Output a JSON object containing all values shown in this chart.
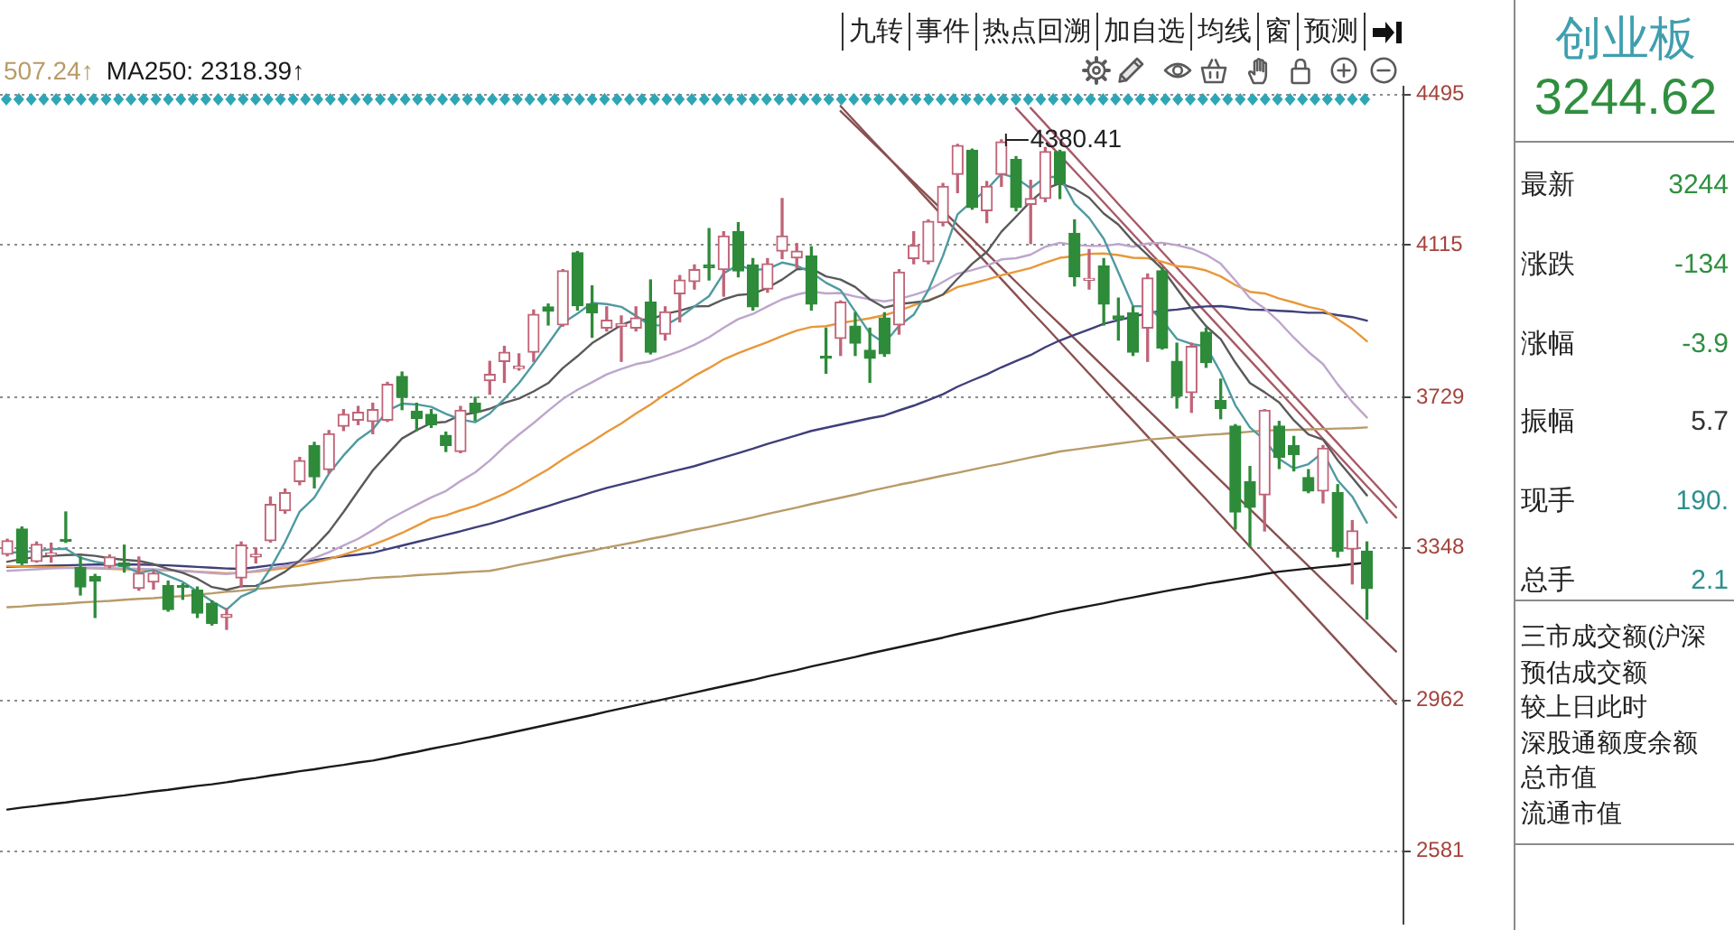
{
  "chart_data": [
    {
      "type": "candlestick",
      "categories": [
        null,
        null,
        null,
        null,
        null,
        null,
        null,
        null,
        null,
        null,
        null,
        null,
        null,
        null,
        null,
        null,
        null,
        null,
        null,
        null,
        null,
        null,
        null,
        null,
        null,
        null,
        null,
        null,
        null,
        null,
        null,
        null,
        null,
        null,
        null,
        null,
        null,
        null,
        null,
        null,
        null,
        null,
        null,
        null,
        null,
        null,
        null,
        null,
        null,
        null,
        null,
        null,
        null,
        null,
        null,
        null,
        null,
        null,
        null,
        null,
        null,
        null,
        null,
        null,
        null,
        null,
        null,
        null,
        null,
        null,
        null,
        null,
        null,
        null,
        null,
        null,
        null,
        null,
        null,
        null,
        null,
        null,
        null,
        null,
        null,
        null,
        null,
        null,
        null,
        null,
        null,
        null,
        null,
        null,
        null,
        null
      ],
      "ohlc": [
        [
          3332,
          3370,
          3328,
          3366
        ],
        [
          3396,
          3401,
          3306,
          3310
        ],
        [
          3314,
          3363,
          3312,
          3357
        ],
        [
          3330,
          3360,
          3312,
          3332
        ],
        [
          3368,
          3439,
          3362,
          3365
        ],
        [
          3299,
          3325,
          3229,
          3249
        ],
        [
          3276,
          3281,
          3172,
          3264
        ],
        [
          3302,
          3330,
          3298,
          3325
        ],
        [
          3310,
          3355,
          3287,
          3302
        ],
        [
          3246,
          3325,
          3241,
          3284
        ],
        [
          3262,
          3290,
          3244,
          3284
        ],
        [
          3253,
          3264,
          3188,
          3192
        ],
        [
          3250,
          3257,
          3218,
          3248
        ],
        [
          3241,
          3249,
          3172,
          3183
        ],
        [
          3208,
          3214,
          3153,
          3157
        ],
        [
          3172,
          3195,
          3142,
          3180
        ],
        [
          3272,
          3363,
          3249,
          3355
        ],
        [
          3325,
          3348,
          3310,
          3332
        ],
        [
          3366,
          3477,
          3363,
          3458
        ],
        [
          3442,
          3497,
          3436,
          3488
        ],
        [
          3516,
          3577,
          3508,
          3569
        ],
        [
          3607,
          3615,
          3500,
          3528
        ],
        [
          3546,
          3645,
          3538,
          3637
        ],
        [
          3656,
          3698,
          3645,
          3686
        ],
        [
          3671,
          3706,
          3660,
          3691
        ],
        [
          3668,
          3714,
          3637,
          3698
        ],
        [
          3671,
          3767,
          3668,
          3762
        ],
        [
          3782,
          3793,
          3698,
          3729
        ],
        [
          3694,
          3714,
          3645,
          3675
        ],
        [
          3686,
          3698,
          3653,
          3660
        ],
        [
          3633,
          3641,
          3592,
          3607
        ],
        [
          3592,
          3706,
          3589,
          3696
        ],
        [
          3714,
          3729,
          3671,
          3691
        ],
        [
          3771,
          3820,
          3737,
          3787
        ],
        [
          3820,
          3858,
          3767,
          3843
        ],
        [
          3802,
          3839,
          3798,
          3808
        ],
        [
          3843,
          3950,
          3820,
          3939
        ],
        [
          3958,
          3965,
          3912,
          3947
        ],
        [
          3912,
          4052,
          3909,
          4049
        ],
        [
          4095,
          4098,
          3950,
          3961
        ],
        [
          3965,
          4011,
          3881,
          3943
        ],
        [
          3904,
          3958,
          3897,
          3924
        ],
        [
          3909,
          3935,
          3820,
          3915
        ],
        [
          3904,
          3958,
          3897,
          3930
        ],
        [
          3970,
          4026,
          3839,
          3843
        ],
        [
          3889,
          3958,
          3874,
          3945
        ],
        [
          3991,
          4037,
          3920,
          4026
        ],
        [
          4022,
          4064,
          4003,
          4052
        ],
        [
          4064,
          4156,
          4026,
          4057
        ],
        [
          4052,
          4148,
          3985,
          4137
        ],
        [
          4148,
          4171,
          4034,
          4049
        ],
        [
          4064,
          4080,
          3950,
          3958
        ],
        [
          4003,
          4080,
          3995,
          4067
        ],
        [
          4099,
          4232,
          4080,
          4137
        ],
        [
          4082,
          4118,
          4057,
          4099
        ],
        [
          4087,
          4110,
          3950,
          3965
        ],
        [
          3832,
          3904,
          3790,
          3828
        ],
        [
          3878,
          3973,
          3835,
          3970
        ],
        [
          3909,
          3943,
          3835,
          3866
        ],
        [
          3848,
          3904,
          3767,
          3828
        ],
        [
          3930,
          3943,
          3833,
          3839
        ],
        [
          3912,
          4052,
          3889,
          4046
        ],
        [
          4080,
          4148,
          4067,
          4113
        ],
        [
          4072,
          4178,
          4067,
          4174
        ],
        [
          4171,
          4270,
          4163,
          4263
        ],
        [
          4293,
          4369,
          4247,
          4366
        ],
        [
          4354,
          4357,
          4205,
          4209
        ],
        [
          4201,
          4275,
          4171,
          4263
        ],
        [
          4293,
          4380.41,
          4263,
          4375
        ],
        [
          4331,
          4338,
          4201,
          4209
        ],
        [
          4217,
          4278,
          4118,
          4232
        ],
        [
          4232,
          4361,
          4224,
          4351
        ],
        [
          4351,
          4354,
          4232,
          4270
        ],
        [
          4144,
          4178,
          4011,
          4034
        ],
        [
          4025,
          4103,
          4003,
          4030
        ],
        [
          4061,
          4080,
          3912,
          3965
        ],
        [
          3935,
          3980,
          3874,
          3927
        ],
        [
          3943,
          3958,
          3835,
          3843
        ],
        [
          3904,
          4041,
          3820,
          4031
        ],
        [
          4049,
          4057,
          3851,
          3854
        ],
        [
          3820,
          3866,
          3702,
          3732
        ],
        [
          3741,
          3866,
          3691,
          3858
        ],
        [
          3894,
          3904,
          3805,
          3817
        ],
        [
          3721,
          3775,
          3675,
          3701
        ],
        [
          3656,
          3660,
          3396,
          3439
        ],
        [
          3515,
          3554,
          3351,
          3451
        ],
        [
          3482,
          3698,
          3391,
          3696
        ],
        [
          3656,
          3668,
          3549,
          3577
        ],
        [
          3607,
          3630,
          3543,
          3584
        ],
        [
          3526,
          3546,
          3488,
          3492
        ],
        [
          3492,
          3607,
          3462,
          3600
        ],
        [
          3488,
          3508,
          3325,
          3340
        ],
        [
          3345,
          3417,
          3257,
          3391
        ],
        [
          3340,
          3363,
          3168,
          3245
        ],
        null,
        null
      ],
      "value_labels": [
        null,
        null,
        null,
        null,
        null,
        null,
        null,
        null,
        null,
        null,
        null,
        null,
        null,
        null,
        null,
        null,
        null,
        null,
        null,
        null,
        null,
        null,
        null,
        null,
        null,
        null,
        null,
        null,
        null,
        null,
        null,
        null,
        null,
        null,
        null,
        null,
        null,
        null,
        null,
        null,
        null,
        null,
        null,
        null,
        null,
        null,
        null,
        null,
        null,
        null,
        null,
        null,
        null,
        null,
        null,
        null,
        null,
        null,
        null,
        null,
        null,
        null,
        null,
        null,
        null,
        null,
        null,
        null,
        "4380.41",
        null,
        null,
        null,
        null,
        null,
        null,
        null,
        null,
        null,
        null,
        null,
        null,
        null,
        null,
        null,
        null,
        null,
        null,
        null,
        null,
        null,
        null,
        null,
        null,
        null,
        null,
        null
      ],
      "colors": [
        "#c06478",
        "#2e8b3a",
        "#c06478",
        "#c06478",
        "#2e8b3a",
        "#2e8b3a",
        "#2e8b3a",
        "#c06478",
        "#2e8b3a",
        "#c06478",
        "#c06478",
        "#2e8b3a",
        "#2e8b3a",
        "#2e8b3a",
        "#2e8b3a",
        "#c06478",
        "#c06478",
        "#c06478",
        "#c06478",
        "#c06478",
        "#c06478",
        "#2e8b3a",
        "#c06478",
        "#c06478",
        "#c06478",
        "#c06478",
        "#c06478",
        "#2e8b3a",
        "#2e8b3a",
        "#2e8b3a",
        "#2e8b3a",
        "#c06478",
        "#2e8b3a",
        "#c06478",
        "#c06478",
        "#c06478",
        "#c06478",
        "#2e8b3a",
        "#c06478",
        "#2e8b3a",
        "#2e8b3a",
        "#c06478",
        "#c06478",
        "#c06478",
        "#2e8b3a",
        "#c06478",
        "#c06478",
        "#c06478",
        "#2e8b3a",
        "#c06478",
        "#2e8b3a",
        "#2e8b3a",
        "#c06478",
        "#c06478",
        "#c06478",
        "#2e8b3a",
        "#2e8b3a",
        "#c06478",
        "#2e8b3a",
        "#2e8b3a",
        "#2e8b3a",
        "#c06478",
        "#c06478",
        "#c06478",
        "#c06478",
        "#c06478",
        "#2e8b3a",
        "#c06478",
        "#c06478",
        "#2e8b3a",
        "#c06478",
        "#c06478",
        "#2e8b3a",
        "#2e8b3a",
        "#c06478",
        "#2e8b3a",
        "#2e8b3a",
        "#2e8b3a",
        "#c06478",
        "#2e8b3a",
        "#2e8b3a",
        "#c06478",
        "#2e8b3a",
        "#2e8b3a",
        "#2e8b3a",
        "#2e8b3a",
        "#c06478",
        "#2e8b3a",
        "#2e8b3a",
        "#2e8b3a",
        "#c06478",
        "#2e8b3a",
        "#c06478",
        "#2e8b3a",
        null,
        null
      ],
      "series": [
        {
          "type": "line",
          "color": "#4f9aa0",
          "values": [
            3335,
            3338,
            3340,
            3345,
            3346,
            3323,
            3313,
            3307,
            3301,
            3285,
            3292,
            3277,
            3262,
            3238,
            3213,
            3192,
            3225,
            3241,
            3296,
            3363,
            3440,
            3475,
            3536,
            3582,
            3622,
            3648,
            3695,
            3713,
            3711,
            3705,
            3687,
            3673,
            3666,
            3688,
            3725,
            3765,
            3814,
            3865,
            3917,
            3941,
            3968,
            3965,
            3958,
            3935,
            3911,
            3911,
            3932,
            3959,
            3985,
            4043,
            4064,
            4051,
            4054,
            4070,
            4062,
            4045,
            4019,
            4000,
            3946,
            3891,
            3866,
            3910,
            3938,
            4000,
            4087,
            4192,
            4225,
            4255,
            4295,
            4284,
            4258,
            4286,
            4287,
            4219,
            4183,
            4130,
            4045,
            3960,
            3959,
            3924,
            3877,
            3864,
            3858,
            3792,
            3709,
            3653,
            3621,
            3573,
            3549,
            3560,
            3590,
            3519,
            3478,
            3412,
            null,
            null
          ]
        },
        {
          "type": "line",
          "color": "#5a5a5a",
          "values": [
            3313,
            3320,
            3325,
            3328,
            3330,
            3331,
            3328,
            3322,
            3318,
            3315,
            3307,
            3295,
            3285,
            3270,
            3249,
            3242,
            3251,
            3252,
            3267,
            3288,
            3316,
            3350,
            3389,
            3439,
            3492,
            3544,
            3585,
            3625,
            3646,
            3664,
            3667,
            3684,
            3690,
            3700,
            3715,
            3726,
            3744,
            3765,
            3803,
            3833,
            3866,
            3889,
            3912,
            3926,
            3926,
            3940,
            3948,
            3959,
            3960,
            3977,
            3988,
            3991,
            4006,
            4027,
            4053,
            4055,
            4035,
            4027,
            4008,
            3977,
            3956,
            3965,
            3969,
            3973,
            3989,
            4029,
            4067,
            4097,
            4148,
            4186,
            4225,
            4256,
            4271,
            4257,
            4234,
            4194,
            4166,
            4124,
            4089,
            4054,
            4004,
            3954,
            3909,
            3876,
            3817,
            3765,
            3742,
            3716,
            3671,
            3635,
            3622,
            3570,
            3526,
            3481,
            null,
            null
          ]
        },
        {
          "type": "line",
          "color": "#bda6cc",
          "values": [
            3290,
            3292,
            3294,
            3296,
            3297,
            3298,
            3298,
            3297,
            3296,
            3295,
            3294,
            3292,
            3290,
            3287,
            3284,
            3282,
            3285,
            3290,
            3296,
            3302,
            3312,
            3323,
            3337,
            3354,
            3371,
            3393,
            3418,
            3438,
            3457,
            3476,
            3492,
            3517,
            3539,
            3569,
            3604,
            3635,
            3664,
            3695,
            3725,
            3748,
            3767,
            3787,
            3801,
            3813,
            3820,
            3833,
            3846,
            3862,
            3881,
            3905,
            3927,
            3940,
            3959,
            3977,
            3989,
            3997,
            3992,
            3993,
            3984,
            3977,
            3972,
            3978,
            3988,
            4000,
            4021,
            4042,
            4051,
            4062,
            4078,
            4081,
            4090,
            4110,
            4120,
            4115,
            4112,
            4112,
            4117,
            4110,
            4118,
            4120,
            4114,
            4105,
            4090,
            4067,
            4025,
            3980,
            3954,
            3920,
            3880,
            3844,
            3813,
            3762,
            3717,
            3678,
            null,
            null
          ]
        },
        {
          "type": "line",
          "color": "#e8983a",
          "values": [
            3302,
            3301,
            3300,
            3299,
            3298,
            3297,
            3296,
            3295,
            3294,
            3293,
            3292,
            3291,
            3290,
            3288,
            3286,
            3284,
            3285,
            3288,
            3292,
            3297,
            3303,
            3311,
            3320,
            3331,
            3343,
            3356,
            3370,
            3386,
            3404,
            3422,
            3430,
            3443,
            3454,
            3469,
            3485,
            3504,
            3526,
            3547,
            3572,
            3595,
            3617,
            3641,
            3663,
            3688,
            3711,
            3737,
            3759,
            3783,
            3803,
            3825,
            3841,
            3855,
            3869,
            3884,
            3898,
            3907,
            3909,
            3917,
            3923,
            3929,
            3937,
            3948,
            3962,
            3975,
            3989,
            4008,
            4017,
            4027,
            4038,
            4047,
            4056,
            4070,
            4082,
            4086,
            4092,
            4093,
            4089,
            4082,
            4081,
            4072,
            4061,
            4058,
            4050,
            4035,
            4013,
            3996,
            3992,
            3979,
            3969,
            3958,
            3950,
            3927,
            3902,
            3871,
            null,
            null
          ]
        },
        {
          "type": "line",
          "color": "#3f3f7a",
          "values": [
            3300,
            3301,
            3302,
            3303,
            3304,
            3305,
            3306,
            3306,
            3306,
            3306,
            3305,
            3304,
            3302,
            3300,
            3298,
            3296,
            3295,
            3299,
            3304,
            3308,
            3313,
            3317,
            3322,
            3327,
            3331,
            3336,
            3345,
            3354,
            3363,
            3372,
            3381,
            3390,
            3400,
            3409,
            3420,
            3432,
            3443,
            3454,
            3466,
            3477,
            3489,
            3500,
            3509,
            3518,
            3528,
            3537,
            3546,
            3555,
            3566,
            3577,
            3588,
            3599,
            3611,
            3622,
            3633,
            3644,
            3652,
            3660,
            3668,
            3676,
            3683,
            3696,
            3708,
            3722,
            3737,
            3756,
            3772,
            3787,
            3805,
            3821,
            3836,
            3856,
            3873,
            3887,
            3901,
            3915,
            3924,
            3933,
            3942,
            3948,
            3951,
            3956,
            3959,
            3960,
            3956,
            3951,
            3950,
            3948,
            3946,
            3943,
            3943,
            3937,
            3932,
            3923,
            null,
            null
          ]
        },
        {
          "type": "line",
          "name": "507.24↑",
          "color": "#b89b68",
          "values": [
            3198,
            3200,
            3203,
            3205,
            3207,
            3210,
            3212,
            3214,
            3217,
            3219,
            3221,
            3224,
            3226,
            3230,
            3233,
            3237,
            3240,
            3244,
            3247,
            3251,
            3254,
            3258,
            3261,
            3265,
            3268,
            3272,
            3274,
            3276,
            3279,
            3281,
            3283,
            3286,
            3288,
            3290,
            3297,
            3305,
            3312,
            3319,
            3327,
            3334,
            3341,
            3349,
            3356,
            3363,
            3371,
            3378,
            3386,
            3394,
            3401,
            3409,
            3417,
            3425,
            3434,
            3442,
            3450,
            3459,
            3467,
            3475,
            3483,
            3492,
            3500,
            3508,
            3515,
            3523,
            3531,
            3538,
            3546,
            3554,
            3561,
            3569,
            3577,
            3584,
            3592,
            3597,
            3602,
            3607,
            3612,
            3617,
            3622,
            3625,
            3628,
            3631,
            3634,
            3636,
            3639,
            3642,
            3645,
            3646,
            3647,
            3648,
            3649,
            3650,
            3651,
            3653,
            null,
            null
          ]
        },
        {
          "type": "line",
          "name": "MA250: 2318.39↑",
          "color": "#1a1a1a",
          "values": [
            2686,
            2691,
            2695,
            2700,
            2704,
            2709,
            2713,
            2718,
            2722,
            2727,
            2732,
            2736,
            2741,
            2746,
            2750,
            2755,
            2761,
            2766,
            2772,
            2777,
            2783,
            2788,
            2794,
            2799,
            2805,
            2810,
            2817,
            2825,
            2832,
            2840,
            2847,
            2854,
            2862,
            2869,
            2877,
            2885,
            2893,
            2901,
            2909,
            2917,
            2925,
            2934,
            2942,
            2950,
            2958,
            2966,
            2974,
            2982,
            2990,
            2998,
            3006,
            3014,
            3023,
            3031,
            3039,
            3048,
            3056,
            3064,
            3072,
            3081,
            3089,
            3097,
            3105,
            3113,
            3121,
            3130,
            3138,
            3146,
            3154,
            3162,
            3170,
            3179,
            3187,
            3194,
            3201,
            3208,
            3216,
            3223,
            3230,
            3237,
            3244,
            3250,
            3257,
            3263,
            3269,
            3275,
            3282,
            3288,
            3292,
            3296,
            3300,
            3303,
            3307,
            3311,
            null,
            null
          ]
        },
        {
          "type": "line",
          "color": "#8a5050",
          "values": [
            null,
            null,
            null,
            null,
            null,
            null,
            null,
            null,
            null,
            null,
            null,
            null,
            null,
            null,
            null,
            null,
            null,
            null,
            null,
            null,
            null,
            null,
            null,
            null,
            null,
            null,
            null,
            null,
            null,
            null,
            null,
            null,
            null,
            null,
            null,
            null,
            null,
            null,
            null,
            null,
            null,
            null,
            null,
            null,
            null,
            null,
            null,
            null,
            null,
            null,
            null,
            null,
            null,
            null,
            null,
            null,
            null,
            4466,
            4426,
            4386,
            4347,
            4307,
            4267,
            4227,
            4187,
            4147,
            4108,
            4068,
            4028,
            3988,
            3948,
            3909,
            3869,
            3829,
            3789,
            3749,
            3709,
            3670,
            3630,
            3590,
            3550,
            3510,
            3471,
            3431,
            3391,
            3351,
            3311,
            3271,
            3232,
            3192,
            3152,
            3112,
            3072,
            3032,
            2993,
            2953
          ]
        },
        {
          "type": "line",
          "color": "#8a5050",
          "values": [
            null,
            null,
            null,
            null,
            null,
            null,
            null,
            null,
            null,
            null,
            null,
            null,
            null,
            null,
            null,
            null,
            null,
            null,
            null,
            null,
            null,
            null,
            null,
            null,
            null,
            null,
            null,
            null,
            null,
            null,
            null,
            null,
            null,
            null,
            null,
            null,
            null,
            null,
            null,
            null,
            null,
            null,
            null,
            null,
            null,
            null,
            null,
            null,
            null,
            null,
            null,
            null,
            null,
            null,
            null,
            null,
            null,
            4453,
            4417,
            4381,
            4345,
            4309,
            4273,
            4237,
            4201,
            4165,
            4129,
            4093,
            4057,
            4021,
            3985,
            3949,
            3914,
            3878,
            3842,
            3806,
            3770,
            3734,
            3698,
            3662,
            3626,
            3590,
            3554,
            3518,
            3482,
            3446,
            3410,
            3374,
            3338,
            3302,
            3266,
            3230,
            3194,
            3158,
            3122,
            3086
          ]
        },
        {
          "type": "line",
          "color": "#a85a68",
          "values": [
            null,
            null,
            null,
            null,
            null,
            null,
            null,
            null,
            null,
            null,
            null,
            null,
            null,
            null,
            null,
            null,
            null,
            null,
            null,
            null,
            null,
            null,
            null,
            null,
            null,
            null,
            null,
            null,
            null,
            null,
            null,
            null,
            null,
            null,
            null,
            null,
            null,
            null,
            null,
            null,
            null,
            null,
            null,
            null,
            null,
            null,
            null,
            null,
            null,
            null,
            null,
            null,
            null,
            null,
            null,
            null,
            null,
            null,
            null,
            null,
            null,
            null,
            null,
            null,
            null,
            null,
            null,
            null,
            null,
            4461,
            4421,
            4381,
            4341,
            4302,
            4262,
            4222,
            4182,
            4142,
            4102,
            4063,
            4023,
            3983,
            3943,
            3903,
            3863,
            3823,
            3783,
            3744,
            3704,
            3664,
            3624,
            3584,
            3544,
            3504,
            3465,
            3425
          ]
        },
        {
          "type": "line",
          "color": "#a85a68",
          "values": [
            null,
            null,
            null,
            null,
            null,
            null,
            null,
            null,
            null,
            null,
            null,
            null,
            null,
            null,
            null,
            null,
            null,
            null,
            null,
            null,
            null,
            null,
            null,
            null,
            null,
            null,
            null,
            null,
            null,
            null,
            null,
            null,
            null,
            null,
            null,
            null,
            null,
            null,
            null,
            null,
            null,
            null,
            null,
            null,
            null,
            null,
            null,
            null,
            null,
            null,
            null,
            null,
            null,
            null,
            null,
            null,
            null,
            null,
            null,
            null,
            null,
            null,
            null,
            null,
            null,
            null,
            null,
            null,
            null,
            null,
            4461,
            4421,
            4380,
            4340,
            4299,
            4259,
            4218,
            4178,
            4138,
            4097,
            4057,
            4017,
            3976,
            3936,
            3896,
            3855,
            3815,
            3774,
            3734,
            3694,
            3653,
            3613,
            3572,
            3532,
            3492,
            3451
          ]
        }
      ],
      "ylim": [
        2395,
        4515
      ],
      "yticks": [
        2581,
        2962,
        3348,
        3729,
        4115,
        4495
      ],
      "grid": "y",
      "legend": "top left",
      "tick_labels": "y",
      "annotations": [
        "九转",
        "事件",
        "热点回溯",
        "加自选",
        "均线",
        "窗",
        "预测"
      ]
    },
    {
      "type": "other",
      "title": "创业板",
      "subtitle": "3244.62",
      "annotations": [
        "最新",
        "3244",
        "涨跌",
        "-134",
        "涨幅",
        "-3.9",
        "振幅",
        "5.7",
        "现手",
        "190.",
        "总手",
        "2.1",
        "三市成交额(沪深",
        "预估成交额",
        "较上日此时",
        "深股通额度余额",
        "总市值",
        "流通市值"
      ]
    }
  ]
}
